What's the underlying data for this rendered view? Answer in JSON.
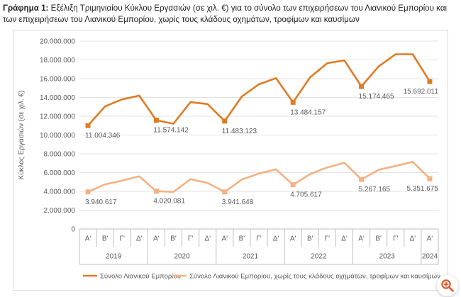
{
  "caption": {
    "label": "Γράφημα 1:",
    "text": "Εξέλιξη Τριμηνιαίου Κύκλου Εργασιών (σε χιλ. €) για το σύνολο των επιχειρήσεων του Λιανικού Εμπορίου και των επιχειρήσεων του Λιανικού Εμπορίου, χωρίς τους κλάδους οχημάτων, τροφίμων και καυσίμων"
  },
  "chart_data": {
    "type": "line",
    "ylabel": "Κύκλος Εργασιών (σε χιλ. €)",
    "ylim": [
      0,
      20000000
    ],
    "yticks": [
      0,
      2000000,
      4000000,
      6000000,
      8000000,
      10000000,
      12000000,
      14000000,
      16000000,
      18000000,
      20000000
    ],
    "ytick_labels": [
      "0",
      "2.000.000",
      "4.000.000",
      "6.000.000",
      "8.000.000",
      "10.000.000",
      "12.000.000",
      "14.000.000",
      "16.000.000",
      "18.000.000",
      "20.000.000"
    ],
    "quarters": [
      "Α'",
      "Β'",
      "Γ'",
      "Δ'",
      "Α'",
      "Β'",
      "Γ'",
      "Δ'",
      "Α'",
      "Β'",
      "Γ'",
      "Δ'",
      "Α'",
      "Β'",
      "Γ'",
      "Δ'",
      "Α'",
      "Β'",
      "Γ'",
      "Δ'",
      "Α'"
    ],
    "years": [
      {
        "label": "2019",
        "count": 4
      },
      {
        "label": "2020",
        "count": 4
      },
      {
        "label": "2021",
        "count": 4
      },
      {
        "label": "2022",
        "count": 4
      },
      {
        "label": "2023",
        "count": 4
      },
      {
        "label": "2024",
        "count": 1
      }
    ],
    "grid": true,
    "legend_position": "bottom",
    "series": [
      {
        "name": "Σύνολο Λιανικού Εμπορίου",
        "color": "#e07b24",
        "values": [
          11004346,
          13050000,
          13800000,
          14200000,
          11574142,
          11200000,
          13500000,
          13300000,
          11483123,
          14100000,
          15400000,
          16050000,
          13484157,
          16150000,
          17650000,
          17950000,
          15174465,
          17300000,
          18600000,
          18600000,
          15692011
        ],
        "marker_indices": [
          0,
          4,
          8,
          12,
          16,
          20
        ],
        "labels": [
          {
            "index": 0,
            "text": "11.004.346",
            "placement": "below"
          },
          {
            "index": 4,
            "text": "11.574.142",
            "placement": "below"
          },
          {
            "index": 8,
            "text": "11.483.123",
            "placement": "below"
          },
          {
            "index": 12,
            "text": "13.484.157",
            "placement": "below"
          },
          {
            "index": 16,
            "text": "15.174.465",
            "placement": "below"
          },
          {
            "index": 20,
            "text": "15.692.011",
            "placement": "below"
          }
        ]
      },
      {
        "name": "Σύνολο Λιανικού Εμπορίου, χωρίς τους κλάδους οχημάτων, τροφίμων και καυσίμων",
        "color": "#f4b183",
        "values": [
          3940617,
          4750000,
          5150000,
          5600000,
          4020081,
          3950000,
          5300000,
          4900000,
          3941648,
          5250000,
          5900000,
          6350000,
          4705617,
          5850000,
          6550000,
          7050000,
          5267165,
          6300000,
          6700000,
          7150000,
          5351675
        ],
        "marker_indices": [
          0,
          4,
          8,
          12,
          16,
          20
        ],
        "labels": [
          {
            "index": 0,
            "text": "3.940.617",
            "placement": "below"
          },
          {
            "index": 4,
            "text": "4.020.081",
            "placement": "below"
          },
          {
            "index": 8,
            "text": "3.941.648",
            "placement": "below"
          },
          {
            "index": 12,
            "text": "4.705.617",
            "placement": "below"
          },
          {
            "index": 16,
            "text": "5.267.165",
            "placement": "below"
          },
          {
            "index": 20,
            "text": "5.351.675",
            "placement": "below"
          }
        ]
      }
    ]
  },
  "colors": {
    "axis": "#bfbfbf",
    "grid": "#e3e3e3",
    "text": "#595959",
    "fab_icon": "#e2582c"
  },
  "icons": {
    "zoom_button": "zoom-in-icon"
  }
}
